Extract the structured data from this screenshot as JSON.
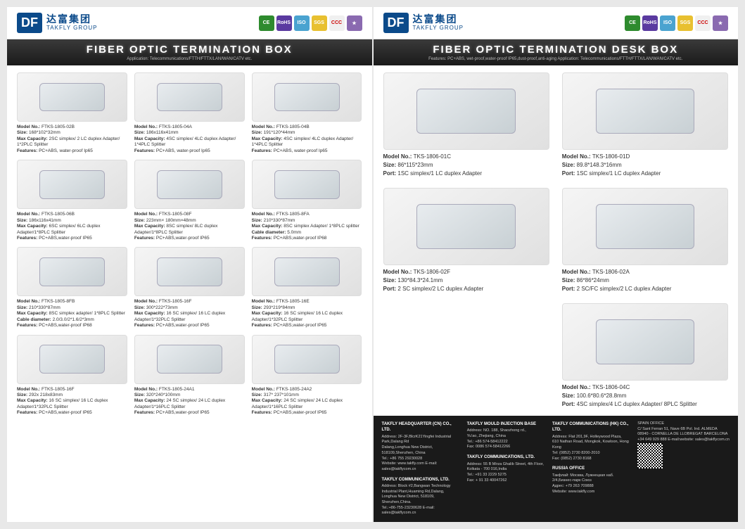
{
  "brand": {
    "df": "DF",
    "cn": "达富集团",
    "en": "TAKFLY GROUP"
  },
  "certs": [
    {
      "bg": "#2e8b2e",
      "txt": "CE"
    },
    {
      "bg": "#5a3aa0",
      "txt": "RoHS"
    },
    {
      "bg": "#4aa3d0",
      "txt": "ISO"
    },
    {
      "bg": "#e8c030",
      "txt": "SGS"
    },
    {
      "bg": "#f0f0f0",
      "txt": "CCC"
    },
    {
      "bg": "#8a6ab0",
      "txt": "★"
    }
  ],
  "page1": {
    "title": "FIBER OPTIC TERMINATION BOX",
    "subtitle": "Application: Telecommunications/FTTH/FTTX/LAN/WAN/CATV etc.",
    "products": [
      {
        "model": "FTKS-1805-02B",
        "size": "168*102*32mm",
        "cap": "2SC simplex/ 2 LC duplex Adapter/ 1*2PLC Splitter",
        "feat": "PC+ABS, water-proof Ip65"
      },
      {
        "model": "FTKS-1805-04A",
        "size": "186x116x41mm",
        "cap": "4SC simplex/ 4LC duplex Adapter/ 1*4PLC Splitter",
        "feat": "PC+ABS, water-proof Ip65"
      },
      {
        "model": "FTKS-1805-04B",
        "size": "191*120*44mm",
        "cap": "4SC simplex/ 4LC duplex Adapter/ 1*4PLC Splitter",
        "feat": "PC+ABS, water-proof Ip65"
      },
      {
        "model": "FTKS-1805-06B",
        "size": "186x116x41mm",
        "cap": "6SC simplex/ 6LC duplex Adapter/1*8PLC Splitter",
        "feat": "PC+ABS,water-proof IP65"
      },
      {
        "model": "FTKS-1805-08F",
        "size": "223mm× 180mm×48mm",
        "cap": "8SC simplex/ 8LC duplex Adapter/1*8PLC Splitter",
        "feat": "PC+ABS,water-proof IP65"
      },
      {
        "model": "FTKS-1805-8FA",
        "size": "210*330*87mm",
        "cap": "8SC simplex Adapter/ 1*8PLC splitter",
        "cable": "5.0mm",
        "feat": "PC+ABS,water-proof IP68"
      },
      {
        "model": "FTKS-1805-8FB",
        "size": "210*330*87mm",
        "cap": "8SC simplex adapter/ 1*8PLC Splitter",
        "cable": "2.0/3.0/2*1.6/2*3mm",
        "feat": "PC+ABS,water-proof IP68"
      },
      {
        "model": "FTKS-1805-16F",
        "size": "300*222*73mm",
        "cap": "16 SC simplex/ 16 LC duplex Adapter/1*32PLC Splitter",
        "feat": "PC+ABS,water-proof IP65"
      },
      {
        "model": "FTKS-1805-16E",
        "size": "293*219*84mm",
        "cap": "16 SC simplex/ 16 LC duplex Adapter/1*32PLC Splitter",
        "feat": "PC+ABS,water-proof IP65"
      },
      {
        "model": "FTKS-1805-16F",
        "size": "292x 218x83mm",
        "cap": "16 SC simplex/ 16 LC duplex Adapter/1*32PLC Splitter",
        "feat": "PC+ABS,water-proof IP65"
      },
      {
        "model": "FTKS-1805-24A1",
        "size": "320*240*100mm",
        "cap": "24 SC simplex/ 24 LC duplex Adapter/1*16PLC Splitter",
        "feat": "PC+ABS,water-proof IP65"
      },
      {
        "model": "FTKS-1805-24A2",
        "size": "317* 237*101mm",
        "cap": "24 SC simplex/ 24 LC duplex Adapter/1*16PLC Splitter",
        "feat": "PC+ABS,water-proof IP65"
      }
    ]
  },
  "page2": {
    "title": "FIBER OPTIC TERMINATION DESK BOX",
    "subtitle": "Features: PC+ABS, wet-proof,water-proof IP65,dust-proof,anti-aging  Application: Telecommunications/FTTH/FTTX/LAN/WAN/CATV etc.",
    "products": [
      {
        "model": "TKS-1806-01C",
        "size": "86*115*23mm",
        "port": "1SC simplex/1 LC duplex Adapter"
      },
      {
        "model": "TKS-1806-01D",
        "size": "89.8*148.3*16mm",
        "port": "1SC simplex/1 LC duplex Adapter"
      },
      {
        "model": "TKS-1806-02F",
        "size": "130*84.3*24.1mm",
        "port": "2 SC simplex/2 LC duplex Adapter"
      },
      {
        "model": "TKS-1806-02A",
        "size": "86*86*24mm",
        "port": "2 SC/FC simplex/2 LC duplex Adapter"
      },
      {
        "model": "TKS-1806-04C",
        "size": "100.6*80.6*28.8mm",
        "port": "4SC simplex/4 LC duplex Adapter/ 8PLC Splitter",
        "span": true
      }
    ]
  },
  "footer": {
    "cols": [
      {
        "t": "TAKFLY HEADQUARTER (CN) CO., LTD.",
        "lines": [
          "Address: 2F-3F,BlcrK21Yingfei Industrial Park,Dalang Rd",
          "Dalang,Longhua New District, 518109,Shenzhen, China",
          "Tel.: +86 755 29230028",
          "Website: www.takfly.com  E-mail: sales@takflycom.cn"
        ]
      },
      {
        "t": "TAKFLY MOULD INJECTION BASE",
        "lines": [
          "Address: NO. 188, Shaozhong rd.,",
          "Yu'ao, Zhejiang, China",
          "Tel.: +86 574-58412222",
          "Fax: 0086 574-58412266"
        ]
      },
      {
        "t": "TAKFLY COMMUNICATIONS (HK) CO., LTD.",
        "lines": [
          "Address: Flat 201,9F, Holleywood Plaza,",
          "610 Nathan Road, Mongkok, Kowloon, Hong Kong",
          "Tel: (0852) 2730 8200-2010",
          "Fax: (0852) 2730 8168"
        ]
      },
      {
        "t": "TAKFLY COMMUNICATIONS, LTD.",
        "lines": [
          "Address: Block #2,Bangwan Technology",
          "Industrial Plant,Huaming Rd,Dalang,",
          "Longhua New District, 518109, Shenzhen,China.",
          "Tel.:+86-755-23230628  E-mail: sales@takflycom.cn"
        ]
      },
      {
        "t": "TAKFLY COMMUNICATIONS, LTD.",
        "lines": [
          "Address: 55 B Mirza Ghalib Street, 4th Floor,",
          "Kolkata - 700 016,India",
          "Tel.: +91 33 2229 5275",
          "Fax: + 91 33 40047262"
        ]
      },
      {
        "t": "RUSSIA OFFICE",
        "lines": [
          "Такфлай: Москва, Лужнецкая наб.",
          "2/4,Бизнес-парк Союз",
          "Адрес: +79 263 709888",
          "Website: www.takfly.com"
        ]
      },
      {
        "t": "SPAIN OFFICE",
        "lines": [
          "C/ Sant Ferran 51, Nave 6B Pol. Ind. ALMEDA",
          "08940 - CORNELLA DE LLOBREGAT BARCELONA",
          "+34 649 929 888  E-mail:website: sales@takflycom.cn"
        ]
      }
    ]
  }
}
